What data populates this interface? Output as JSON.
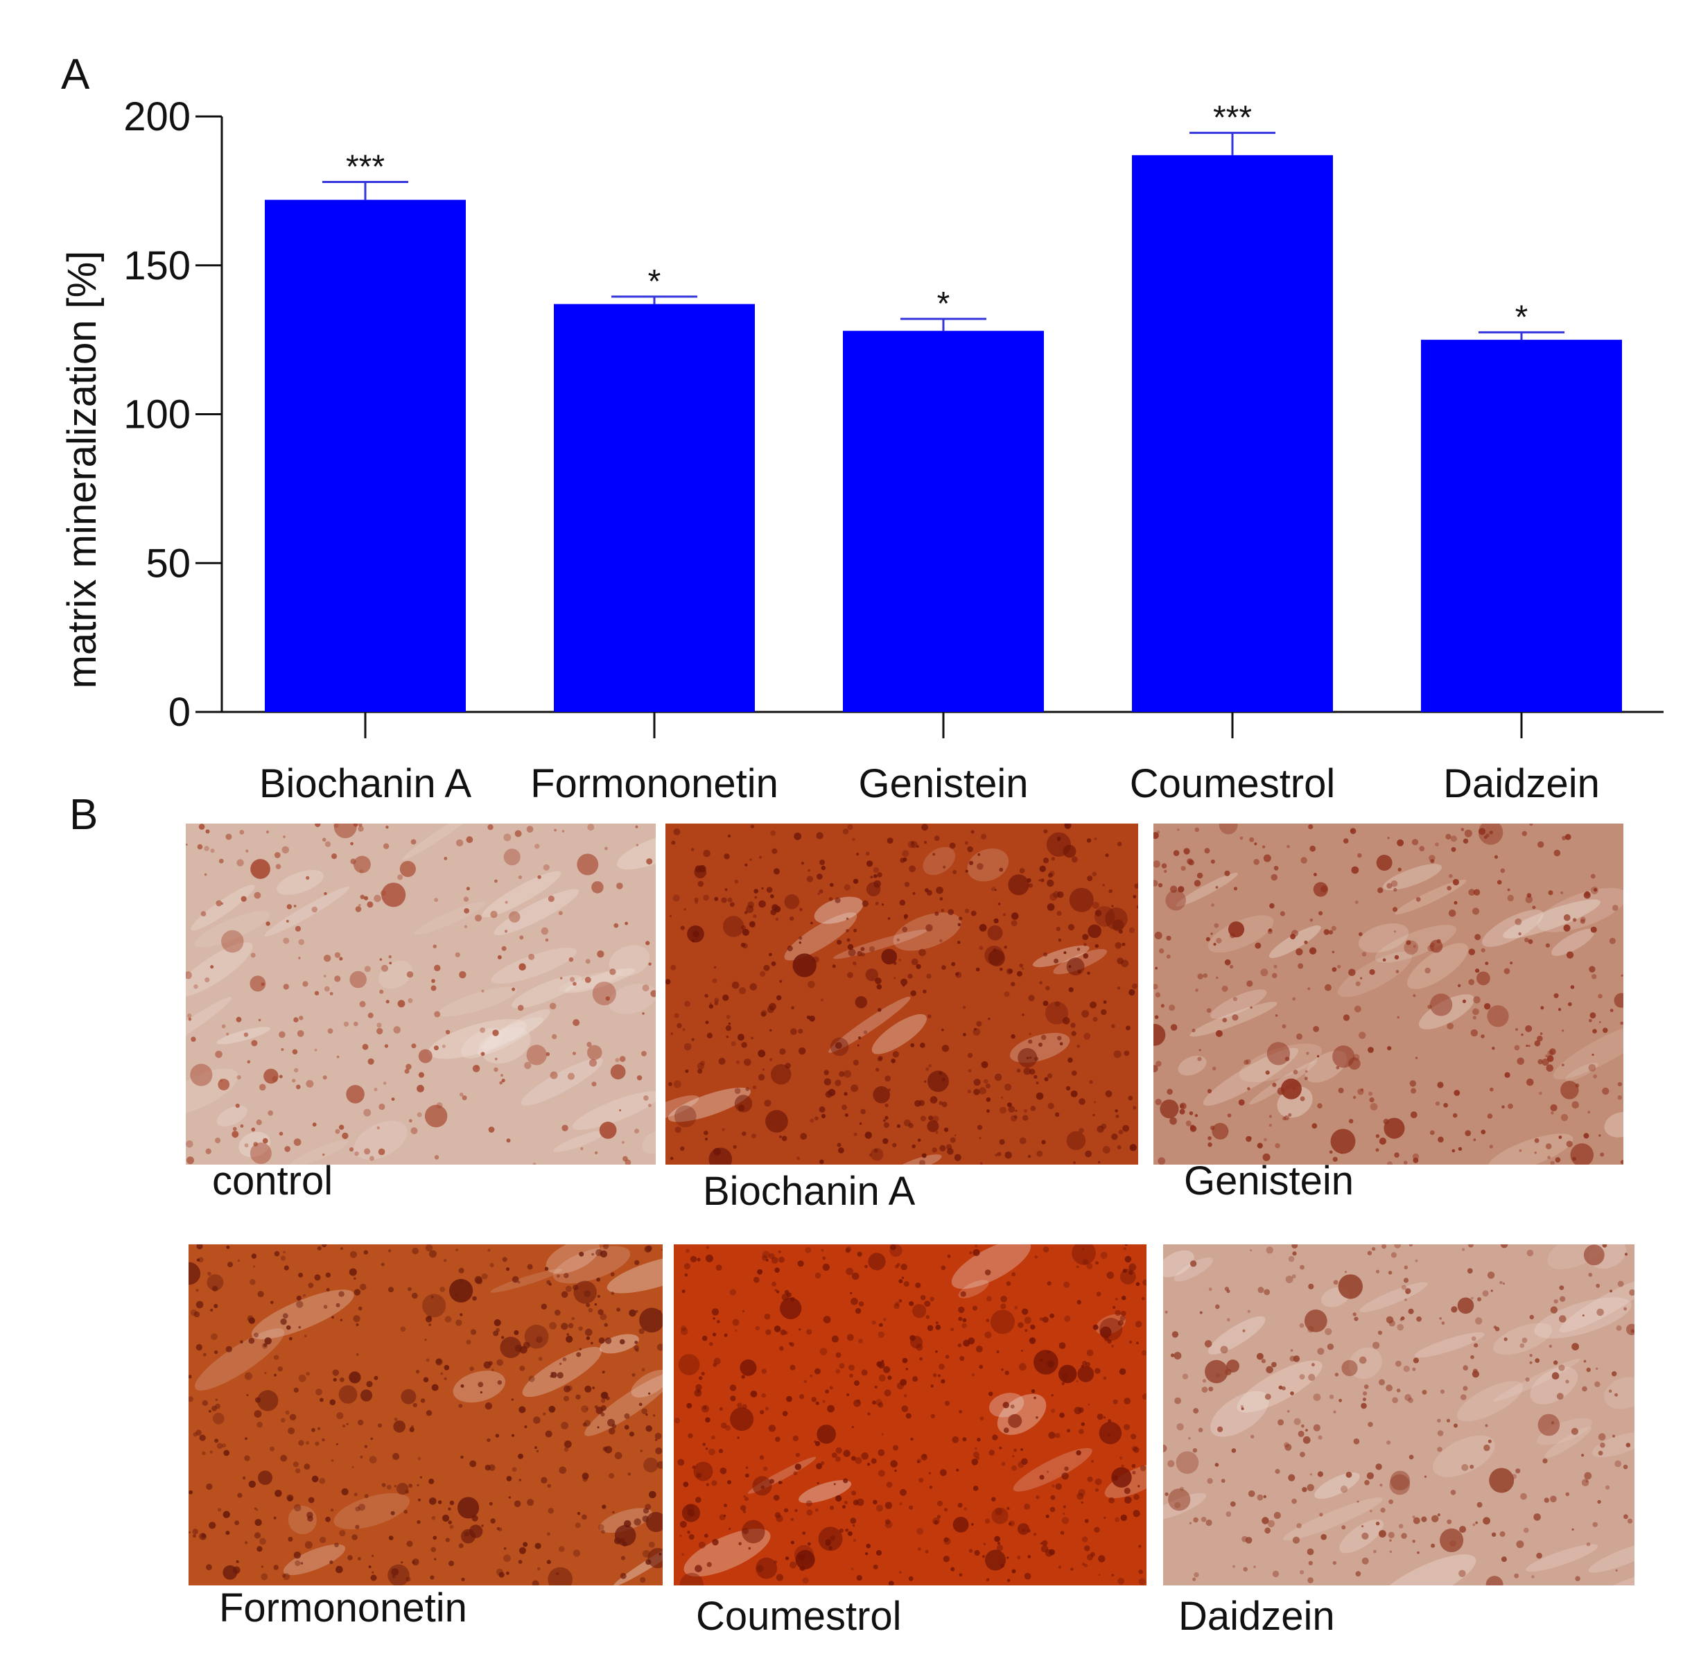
{
  "panels": {
    "a_label": "A",
    "b_label": "B"
  },
  "chart_data": {
    "type": "bar",
    "title": "",
    "xlabel": "",
    "ylabel": "matrix mineralization [%]",
    "ylim": [
      0,
      200
    ],
    "yticks": [
      0,
      50,
      100,
      150,
      200
    ],
    "categories": [
      "Biochanin A",
      "Formononetin",
      "Genistein",
      "Coumestrol",
      "Daidzein"
    ],
    "values": [
      172,
      137,
      128,
      187,
      125
    ],
    "errors": [
      6,
      2.5,
      4,
      7.5,
      2.5
    ],
    "significance": [
      "***",
      "*",
      "*",
      "***",
      "*"
    ],
    "bar_color": "#0000ff",
    "error_color": "#3333dd",
    "axis_color": "#111111",
    "grid": false
  },
  "micrographs": {
    "row1": [
      {
        "label": "control",
        "base": "#d7b7a8",
        "spot": "#a84a32",
        "density": 0.35
      },
      {
        "label": "Biochanin A",
        "base": "#b24218",
        "spot": "#6e1608",
        "density": 0.85
      },
      {
        "label": "Genistein",
        "base": "#c28d76",
        "spot": "#8f2f1c",
        "density": 0.55
      }
    ],
    "row2": [
      {
        "label": "Formononetin",
        "base": "#b9501e",
        "spot": "#6a1a0c",
        "density": 0.8
      },
      {
        "label": "Coumestrol",
        "base": "#c23a0c",
        "spot": "#741505",
        "density": 0.95
      },
      {
        "label": "Daidzein",
        "base": "#cfa594",
        "spot": "#94402a",
        "density": 0.45
      }
    ]
  }
}
